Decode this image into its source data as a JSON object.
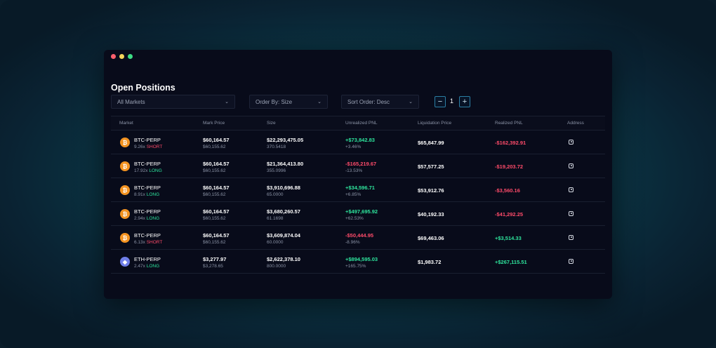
{
  "page": {
    "title": "Open Positions"
  },
  "filters": {
    "market": "All Markets",
    "order_by": "Order By: Size",
    "sort_order": "Sort Order: Desc",
    "page_number": "1",
    "minus": "−",
    "plus": "+"
  },
  "table": {
    "headers": {
      "market": "Market",
      "mark_price": "Mark Price",
      "size": "Size",
      "unrealized_pnl": "Unrealized PNL",
      "liquidation_price": "Liquidation Price",
      "realized_pnl": "Realized PNL",
      "address": "Address"
    },
    "rows": [
      {
        "coin": "btc",
        "coin_glyph": "₿",
        "market": "BTC-PERP",
        "leverage": "9.26x",
        "side": "SHORT",
        "side_class": "short",
        "mark_price": "$60,164.57",
        "mark_sub": "$60,155.62",
        "size": "$22,293,475.05",
        "size_sub": "370.5418",
        "upnl": "+$73,842.83",
        "upnl_pct": "+3.46%",
        "upnl_sign": "pos",
        "liq_price": "$65,847.99",
        "rpnl": "-$162,392.91",
        "rpnl_sign": "neg"
      },
      {
        "coin": "btc",
        "coin_glyph": "₿",
        "market": "BTC-PERP",
        "leverage": "17.92x",
        "side": "LONG",
        "side_class": "long",
        "mark_price": "$60,164.57",
        "mark_sub": "$60,155.62",
        "size": "$21,364,413.80",
        "size_sub": "355.0996",
        "upnl": "-$165,219.67",
        "upnl_pct": "-13.53%",
        "upnl_sign": "neg",
        "liq_price": "$57,577.25",
        "rpnl": "-$19,203.72",
        "rpnl_sign": "neg"
      },
      {
        "coin": "btc",
        "coin_glyph": "₿",
        "market": "BTC-PERP",
        "leverage": "8.91x",
        "side": "LONG",
        "side_class": "long",
        "mark_price": "$60,164.57",
        "mark_sub": "$60,155.62",
        "size": "$3,910,696.88",
        "size_sub": "65.0000",
        "upnl": "+$34,596.71",
        "upnl_pct": "+6.85%",
        "upnl_sign": "pos",
        "liq_price": "$53,912.76",
        "rpnl": "-$3,560.16",
        "rpnl_sign": "neg"
      },
      {
        "coin": "btc",
        "coin_glyph": "₿",
        "market": "BTC-PERP",
        "leverage": "2.94x",
        "side": "LONG",
        "side_class": "long",
        "mark_price": "$60,164.57",
        "mark_sub": "$60,155.62",
        "size": "$3,680,260.57",
        "size_sub": "61.1698",
        "upnl": "+$497,695.92",
        "upnl_pct": "+62.53%",
        "upnl_sign": "pos",
        "liq_price": "$40,192.33",
        "rpnl": "-$41,292.25",
        "rpnl_sign": "neg"
      },
      {
        "coin": "btc",
        "coin_glyph": "₿",
        "market": "BTC-PERP",
        "leverage": "6.13x",
        "side": "SHORT",
        "side_class": "short",
        "mark_price": "$60,164.57",
        "mark_sub": "$60,155.62",
        "size": "$3,609,874.04",
        "size_sub": "60.0000",
        "upnl": "-$50,444.95",
        "upnl_pct": "-8.96%",
        "upnl_sign": "neg",
        "liq_price": "$69,463.06",
        "rpnl": "+$3,514.33",
        "rpnl_sign": "pos"
      },
      {
        "coin": "eth",
        "coin_glyph": "◆",
        "market": "ETH-PERP",
        "leverage": "2.47x",
        "side": "LONG",
        "side_class": "long",
        "mark_price": "$3,277.97",
        "mark_sub": "$3,278.65",
        "size": "$2,622,378.10",
        "size_sub": "800.0000",
        "upnl": "+$894,595.03",
        "upnl_pct": "+165.75%",
        "upnl_sign": "pos",
        "liq_price": "$1,983.72",
        "rpnl": "+$267,115.51",
        "rpnl_sign": "pos"
      }
    ]
  },
  "colors": {
    "positive": "#2ee59d",
    "negative": "#ff4b6a",
    "btc": "#f39321",
    "eth": "#6f7ee8"
  }
}
